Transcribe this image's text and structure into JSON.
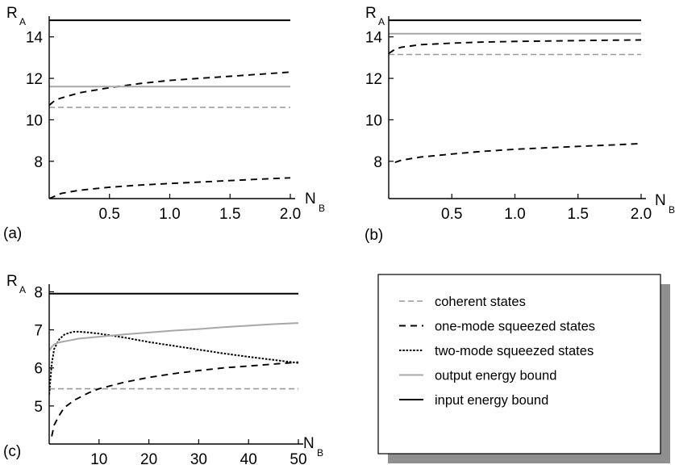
{
  "chart_data": [
    {
      "panel_label": "(a)",
      "type": "line",
      "xlabel": "N",
      "xlabel_sub": "B",
      "ylabel": "R",
      "ylabel_sub": "A",
      "xlim": [
        0,
        2.0
      ],
      "ylim": [
        6.2,
        15.0
      ],
      "xticks": [
        0.5,
        1.0,
        1.5,
        2.0
      ],
      "xtick_labels": [
        "0.5",
        "1.0",
        "1.5",
        "2.0"
      ],
      "yticks": [
        8,
        10,
        12,
        14
      ],
      "ytick_labels": [
        "8",
        "10",
        "12",
        "14"
      ],
      "series": [
        {
          "style": "coherent",
          "x": [
            0,
            2.0
          ],
          "y": [
            10.6,
            10.6
          ]
        },
        {
          "style": "one-mode",
          "x": [
            0.0,
            0.1,
            0.25,
            0.5,
            0.75,
            1.0,
            1.25,
            1.5,
            1.75,
            2.0
          ],
          "y": [
            6.2,
            6.45,
            6.6,
            6.75,
            6.85,
            6.93,
            7.0,
            7.07,
            7.14,
            7.2
          ]
        },
        {
          "style": "one-mode",
          "x": [
            0.0,
            0.05,
            0.1,
            0.25,
            0.5,
            0.75,
            1.0,
            1.25,
            1.5,
            1.75,
            2.0
          ],
          "y": [
            10.7,
            10.95,
            11.05,
            11.3,
            11.55,
            11.75,
            11.9,
            12.0,
            12.1,
            12.2,
            12.3
          ]
        },
        {
          "style": "output",
          "x": [
            0,
            2.0
          ],
          "y": [
            11.6,
            11.6
          ]
        },
        {
          "style": "input",
          "x": [
            0,
            2.0
          ],
          "y": [
            14.8,
            14.8
          ]
        }
      ]
    },
    {
      "panel_label": "(b)",
      "type": "line",
      "xlabel": "N",
      "xlabel_sub": "B",
      "ylabel": "R",
      "ylabel_sub": "A",
      "xlim": [
        0,
        2.0
      ],
      "ylim": [
        6.2,
        15.0
      ],
      "xticks": [
        0.5,
        1.0,
        1.5,
        2.0
      ],
      "xtick_labels": [
        "0.5",
        "1.0",
        "1.5",
        "2.0"
      ],
      "yticks": [
        8,
        10,
        12,
        14
      ],
      "ytick_labels": [
        "8",
        "10",
        "12",
        "14"
      ],
      "series": [
        {
          "style": "coherent",
          "x": [
            0,
            2.0
          ],
          "y": [
            13.15,
            13.15
          ]
        },
        {
          "style": "one-mode",
          "x": [
            0.05,
            0.1,
            0.25,
            0.5,
            0.75,
            1.0,
            1.25,
            1.5,
            1.75,
            2.0
          ],
          "y": [
            7.95,
            8.05,
            8.2,
            8.35,
            8.48,
            8.58,
            8.65,
            8.72,
            8.78,
            8.85
          ]
        },
        {
          "style": "one-mode",
          "x": [
            0.0,
            0.05,
            0.1,
            0.25,
            0.5,
            0.75,
            1.0,
            1.25,
            1.5,
            1.75,
            2.0
          ],
          "y": [
            13.2,
            13.4,
            13.5,
            13.62,
            13.7,
            13.75,
            13.78,
            13.8,
            13.82,
            13.84,
            13.85
          ]
        },
        {
          "style": "output",
          "x": [
            0,
            2.0
          ],
          "y": [
            14.15,
            14.15
          ]
        },
        {
          "style": "input",
          "x": [
            0,
            2.0
          ],
          "y": [
            14.8,
            14.8
          ]
        }
      ]
    },
    {
      "panel_label": "(c)",
      "type": "line",
      "xlabel": "N",
      "xlabel_sub": "B",
      "ylabel": "R",
      "ylabel_sub": "A",
      "xlim": [
        0,
        50
      ],
      "ylim": [
        4.0,
        8.2
      ],
      "xticks": [
        10,
        20,
        30,
        40,
        50
      ],
      "xtick_labels": [
        "10",
        "20",
        "30",
        "40",
        "50"
      ],
      "yticks": [
        5,
        6,
        7,
        8
      ],
      "ytick_labels": [
        "5",
        "6",
        "7",
        "8"
      ],
      "series": [
        {
          "style": "coherent",
          "x": [
            0,
            50
          ],
          "y": [
            5.45,
            5.45
          ]
        },
        {
          "style": "one-mode",
          "x": [
            0.5,
            1,
            2,
            3,
            5,
            8,
            10,
            15,
            20,
            25,
            30,
            35,
            40,
            45,
            50
          ],
          "y": [
            4.2,
            4.5,
            4.75,
            4.95,
            5.15,
            5.35,
            5.45,
            5.62,
            5.75,
            5.85,
            5.93,
            6.0,
            6.05,
            6.1,
            6.15
          ]
        },
        {
          "style": "two-mode",
          "x": [
            0,
            0.5,
            1,
            2,
            3,
            4,
            5,
            6,
            7,
            8,
            10,
            15,
            20,
            25,
            30,
            35,
            40,
            45,
            50
          ],
          "y": [
            5.3,
            6.1,
            6.5,
            6.75,
            6.87,
            6.92,
            6.95,
            6.95,
            6.94,
            6.93,
            6.9,
            6.8,
            6.68,
            6.58,
            6.48,
            6.38,
            6.29,
            6.21,
            6.13
          ]
        },
        {
          "style": "output",
          "x": [
            0,
            0.5,
            1,
            2,
            4,
            6,
            10,
            15,
            20,
            25,
            30,
            35,
            40,
            45,
            50
          ],
          "y": [
            6.45,
            6.55,
            6.62,
            6.67,
            6.72,
            6.77,
            6.82,
            6.88,
            6.93,
            6.98,
            7.02,
            7.07,
            7.11,
            7.15,
            7.18
          ]
        },
        {
          "style": "input",
          "x": [
            0,
            50
          ],
          "y": [
            7.95,
            7.95
          ]
        }
      ]
    }
  ],
  "legend": {
    "placement": "bottom-right",
    "entries": [
      {
        "style": "coherent",
        "label": "coherent states"
      },
      {
        "style": "one-mode",
        "label": "one-mode squeezed states"
      },
      {
        "style": "two-mode",
        "label": "two-mode squeezed states"
      },
      {
        "style": "output",
        "label": "output energy bound"
      },
      {
        "style": "input",
        "label": "input energy bound"
      }
    ]
  },
  "styles": {
    "coherent": {
      "color": "#9a9a9a",
      "dash": "dashed-grey"
    },
    "one-mode": {
      "color": "#000000",
      "dash": "dashed"
    },
    "two-mode": {
      "color": "#000000",
      "dash": "dotted"
    },
    "output": {
      "color": "#a8a8a8",
      "dash": "solid"
    },
    "input": {
      "color": "#000000",
      "dash": "solid"
    }
  }
}
